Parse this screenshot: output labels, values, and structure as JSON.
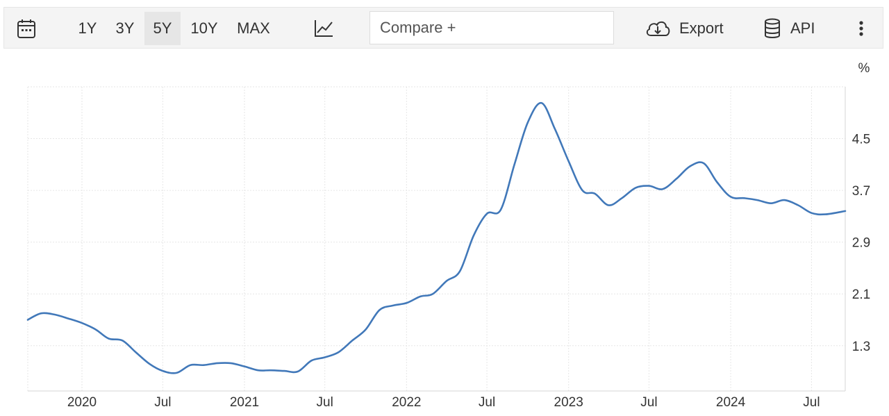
{
  "toolbar": {
    "ranges": [
      "1Y",
      "3Y",
      "5Y",
      "10Y",
      "MAX"
    ],
    "active_range": "5Y",
    "compare_placeholder": "Compare +",
    "export_label": "Export",
    "api_label": "API",
    "icons": [
      "calendar-icon",
      "line-chart-icon",
      "cloud-download-icon",
      "database-icon",
      "more-vertical-icon"
    ]
  },
  "chart_data": {
    "type": "line",
    "unit": "%",
    "line_color": "#4178b9",
    "ylim": [
      0.6,
      5.3
    ],
    "yticks": [
      1.3,
      2.1,
      2.9,
      3.7,
      4.5
    ],
    "xlim": [
      "2019-09-01",
      "2024-09-15"
    ],
    "xticks": [
      {
        "date": "2020-01-01",
        "label": "2020"
      },
      {
        "date": "2020-07-01",
        "label": "Jul"
      },
      {
        "date": "2021-01-01",
        "label": "2021"
      },
      {
        "date": "2021-07-01",
        "label": "Jul"
      },
      {
        "date": "2022-01-01",
        "label": "2022"
      },
      {
        "date": "2022-07-01",
        "label": "Jul"
      },
      {
        "date": "2023-01-01",
        "label": "2023"
      },
      {
        "date": "2023-07-01",
        "label": "Jul"
      },
      {
        "date": "2024-01-01",
        "label": "2024"
      },
      {
        "date": "2024-07-01",
        "label": "Jul"
      }
    ],
    "grid": true,
    "series": [
      {
        "values": [
          [
            "2019-09-01",
            1.7
          ],
          [
            "2019-10-01",
            1.8
          ],
          [
            "2019-11-01",
            1.78
          ],
          [
            "2019-12-01",
            1.72
          ],
          [
            "2020-01-01",
            1.65
          ],
          [
            "2020-02-01",
            1.55
          ],
          [
            "2020-03-01",
            1.41
          ],
          [
            "2020-04-01",
            1.38
          ],
          [
            "2020-05-01",
            1.2
          ],
          [
            "2020-06-01",
            1.02
          ],
          [
            "2020-07-01",
            0.91
          ],
          [
            "2020-08-01",
            0.88
          ],
          [
            "2020-09-01",
            1.0
          ],
          [
            "2020-10-01",
            1.0
          ],
          [
            "2020-11-01",
            1.03
          ],
          [
            "2020-12-01",
            1.03
          ],
          [
            "2021-01-01",
            0.98
          ],
          [
            "2021-02-01",
            0.92
          ],
          [
            "2021-03-01",
            0.92
          ],
          [
            "2021-04-01",
            0.91
          ],
          [
            "2021-05-01",
            0.9
          ],
          [
            "2021-06-01",
            1.07
          ],
          [
            "2021-07-01",
            1.12
          ],
          [
            "2021-08-01",
            1.2
          ],
          [
            "2021-09-01",
            1.38
          ],
          [
            "2021-10-01",
            1.55
          ],
          [
            "2021-11-01",
            1.85
          ],
          [
            "2021-12-01",
            1.92
          ],
          [
            "2022-01-01",
            1.96
          ],
          [
            "2022-02-01",
            2.06
          ],
          [
            "2022-03-01",
            2.1
          ],
          [
            "2022-04-01",
            2.3
          ],
          [
            "2022-05-01",
            2.45
          ],
          [
            "2022-06-01",
            3.0
          ],
          [
            "2022-07-01",
            3.34
          ],
          [
            "2022-08-01",
            3.4
          ],
          [
            "2022-09-01",
            4.1
          ],
          [
            "2022-10-01",
            4.75
          ],
          [
            "2022-11-01",
            5.05
          ],
          [
            "2022-12-01",
            4.65
          ],
          [
            "2023-01-01",
            4.15
          ],
          [
            "2023-02-01",
            3.7
          ],
          [
            "2023-03-01",
            3.65
          ],
          [
            "2023-04-01",
            3.47
          ],
          [
            "2023-05-01",
            3.58
          ],
          [
            "2023-06-01",
            3.74
          ],
          [
            "2023-07-01",
            3.77
          ],
          [
            "2023-08-01",
            3.72
          ],
          [
            "2023-09-01",
            3.88
          ],
          [
            "2023-10-01",
            4.07
          ],
          [
            "2023-11-01",
            4.12
          ],
          [
            "2023-12-01",
            3.83
          ],
          [
            "2024-01-01",
            3.6
          ],
          [
            "2024-02-01",
            3.58
          ],
          [
            "2024-03-01",
            3.55
          ],
          [
            "2024-04-01",
            3.5
          ],
          [
            "2024-05-01",
            3.55
          ],
          [
            "2024-06-01",
            3.47
          ],
          [
            "2024-07-01",
            3.35
          ],
          [
            "2024-08-01",
            3.33
          ],
          [
            "2024-09-15",
            3.38
          ]
        ]
      }
    ]
  }
}
